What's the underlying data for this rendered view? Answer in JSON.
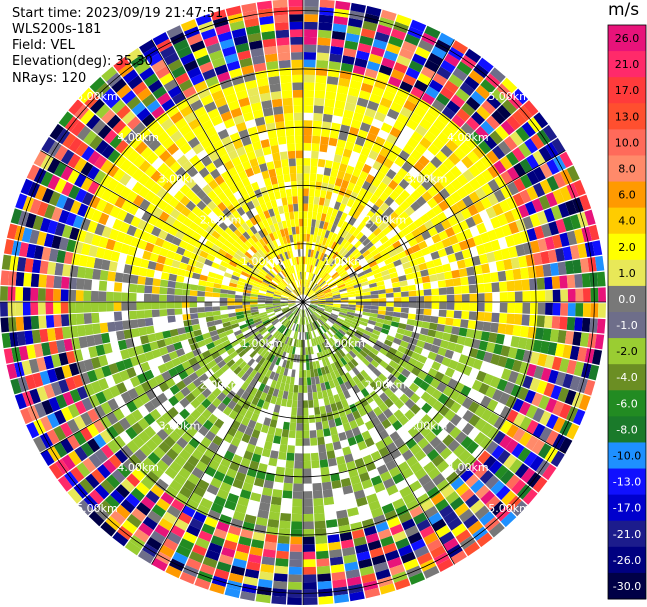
{
  "header": {
    "start_time": "Start time: 2023/09/19 21:47:51",
    "instrument": "WLS200s-181",
    "field": "Field: VEL",
    "elevation": "Elevation(deg): 35.30",
    "nrays": "NRays: 120"
  },
  "colorbar": {
    "unit": "m/s",
    "ticks": [
      "26.0",
      "21.0",
      "17.0",
      "13.0",
      "10.0",
      "8.0",
      "6.0",
      "4.0",
      "2.0",
      "1.0",
      "0.0",
      "-1.0",
      "-2.0",
      "-4.0",
      "-6.0",
      "-8.0",
      "-10.0",
      "-13.0",
      "-17.0",
      "-21.0",
      "-26.0",
      "-30.0"
    ],
    "colors": [
      "#e8137a",
      "#ff2a6a",
      "#ff3b3b",
      "#ff4f2f",
      "#ff6a5a",
      "#ff8a6a",
      "#ff9a00",
      "#ffcc00",
      "#ffff00",
      "#e8e858",
      "#787878",
      "#6e6e8a",
      "#9acd32",
      "#6b8e23",
      "#228b22",
      "#1a7a2a",
      "#1e90ff",
      "#1010ff",
      "#0000cd",
      "#1c1c8c",
      "#000080",
      "#000046"
    ]
  },
  "range_labels": [
    "1.00km",
    "2.00km",
    "3.00km",
    "4.00km",
    "5.00km"
  ],
  "chart_data": {
    "type": "ppi",
    "field": "VEL",
    "units": "m/s",
    "nrays": 120,
    "elevation_deg": 35.3,
    "range_rings_km": [
      1,
      2,
      3,
      4,
      5
    ],
    "color_levels": [
      26.0,
      21.0,
      17.0,
      13.0,
      10.0,
      8.0,
      6.0,
      4.0,
      2.0,
      1.0,
      0.0,
      -1.0,
      -2.0,
      -4.0,
      -6.0,
      -8.0,
      -10.0,
      -13.0,
      -17.0,
      -21.0,
      -26.0,
      -30.0
    ]
  }
}
